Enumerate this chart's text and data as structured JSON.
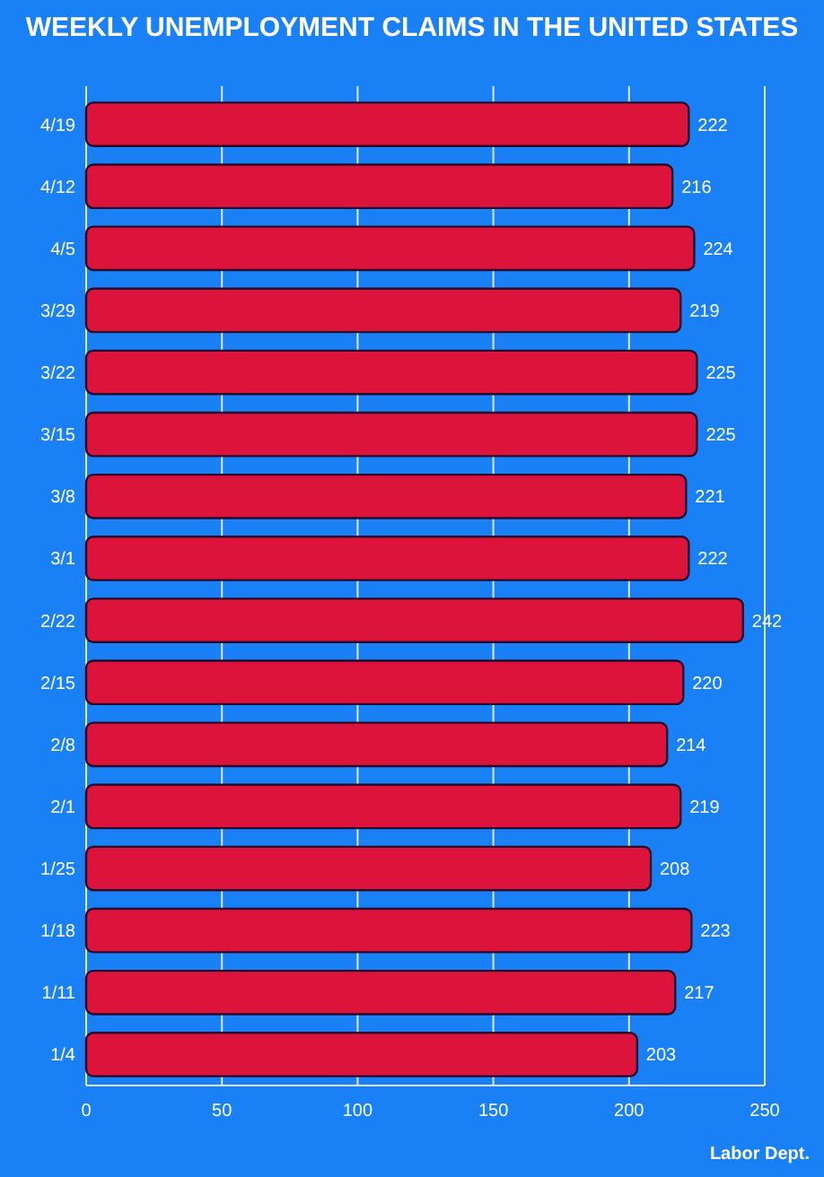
{
  "chart_data": {
    "type": "bar",
    "orientation": "horizontal",
    "title": "WEEKLY UNEMPLOYMENT CLAIMS IN THE UNITED STATES",
    "categories": [
      "4/19",
      "4/12",
      "4/5",
      "3/29",
      "3/22",
      "3/15",
      "3/8",
      "3/1",
      "2/22",
      "2/15",
      "2/8",
      "2/1",
      "1/25",
      "1/18",
      "1/11",
      "1/4"
    ],
    "values": [
      222,
      216,
      224,
      219,
      225,
      225,
      221,
      222,
      242,
      220,
      214,
      219,
      208,
      223,
      217,
      203
    ],
    "color": "#dc143c",
    "xlim": [
      0,
      250
    ],
    "xticks": [
      0,
      50,
      100,
      150,
      200,
      250
    ],
    "grid": "x",
    "data_labels": true,
    "annotations": [
      "Labor Dept."
    ]
  }
}
